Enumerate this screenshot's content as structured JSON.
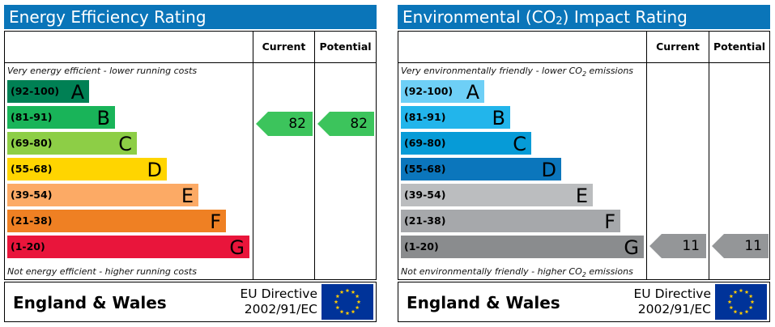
{
  "energy": {
    "title": "Energy Efficiency Rating",
    "col_current": "Current",
    "col_potential": "Potential",
    "top_note": "Very energy efficient - lower running costs",
    "bottom_note": "Not energy efficient - higher running costs",
    "bands": [
      {
        "range": "(92-100)",
        "letter": "A",
        "color": "#008054",
        "text_color": "#000000"
      },
      {
        "range": "(81-91)",
        "letter": "B",
        "color": "#19b459",
        "text_color": "#000000"
      },
      {
        "range": "(69-80)",
        "letter": "C",
        "color": "#8dce46",
        "text_color": "#000000"
      },
      {
        "range": "(55-68)",
        "letter": "D",
        "color": "#ffd500",
        "text_color": "#000000"
      },
      {
        "range": "(39-54)",
        "letter": "E",
        "color": "#fcaa65",
        "text_color": "#000000"
      },
      {
        "range": "(21-38)",
        "letter": "F",
        "color": "#ef8023",
        "text_color": "#000000"
      },
      {
        "range": "(1-20)",
        "letter": "G",
        "color": "#e9153b",
        "text_color": "#000000"
      }
    ],
    "current": {
      "value": "82",
      "band": "B",
      "color": "#3cc45c"
    },
    "potential": {
      "value": "82",
      "band": "B",
      "color": "#3cc45c"
    },
    "region": "England & Wales",
    "directive_line1": "EU Directive",
    "directive_line2": "2002/91/EC"
  },
  "environmental": {
    "title_prefix": "Environmental (CO",
    "title_sub": "2",
    "title_suffix": ") Impact Rating",
    "col_current": "Current",
    "col_potential": "Potential",
    "top_note_prefix": "Very environmentally friendly - lower CO",
    "top_note_sub": "2",
    "top_note_suffix": " emissions",
    "bottom_note_prefix": "Not environmentally friendly - higher CO",
    "bottom_note_sub": "2",
    "bottom_note_suffix": " emissions",
    "bands": [
      {
        "range": "(92-100)",
        "letter": "A",
        "color": "#6ecff6",
        "text_color": "#000000"
      },
      {
        "range": "(81-91)",
        "letter": "B",
        "color": "#22b5eb",
        "text_color": "#000000"
      },
      {
        "range": "(69-80)",
        "letter": "C",
        "color": "#069bd7",
        "text_color": "#000000"
      },
      {
        "range": "(55-68)",
        "letter": "D",
        "color": "#0b76bc",
        "text_color": "#000000"
      },
      {
        "range": "(39-54)",
        "letter": "E",
        "color": "#bbbdbf",
        "text_color": "#000000"
      },
      {
        "range": "(21-38)",
        "letter": "F",
        "color": "#a6a8ab",
        "text_color": "#000000"
      },
      {
        "range": "(1-20)",
        "letter": "G",
        "color": "#8a8c8e",
        "text_color": "#000000"
      }
    ],
    "current": {
      "value": "11",
      "band": "G",
      "color": "#949698"
    },
    "potential": {
      "value": "11",
      "band": "G",
      "color": "#949698"
    },
    "region": "England & Wales",
    "directive_line1": "EU Directive",
    "directive_line2": "2002/91/EC"
  },
  "icons": {
    "flag": "eu-flag-icon",
    "flag_color": "#003399",
    "star_color": "#ffcc00"
  }
}
